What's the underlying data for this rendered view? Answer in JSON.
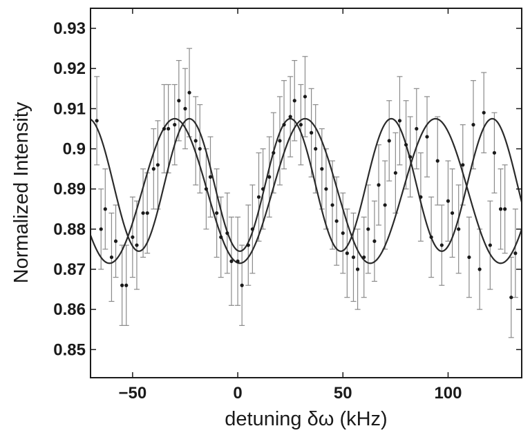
{
  "chart_data": {
    "type": "scatter",
    "title": "",
    "xlabel": "detuning δω (kHz)",
    "ylabel": "Normalized Intensity",
    "xlim": [
      -70,
      135
    ],
    "ylim": [
      0.843,
      0.935
    ],
    "xticks": [
      -50,
      0,
      50,
      100
    ],
    "xtick_labels": [
      "−50",
      "0",
      "50",
      "100"
    ],
    "yticks": [
      0.85,
      0.86,
      0.87,
      0.88,
      0.89,
      0.9,
      0.91,
      0.92,
      0.93
    ],
    "ytick_labels": [
      "0.85",
      "0.86",
      "0.87",
      "0.88",
      "0.89",
      "0.9",
      "0.91",
      "0.92",
      "0.93"
    ],
    "grid": false,
    "legend": false,
    "series": [
      {
        "fit": {
          "center": 0.891,
          "amplitude": 0.0165,
          "period": 48,
          "phase_x": 25
        },
        "points": [
          {
            "x": -67,
            "y": 0.907,
            "err": 0.011
          },
          {
            "x": -63,
            "y": 0.885,
            "err": 0.01
          },
          {
            "x": -58,
            "y": 0.877,
            "err": 0.009
          },
          {
            "x": -53,
            "y": 0.866,
            "err": 0.01
          },
          {
            "x": -48,
            "y": 0.876,
            "err": 0.011
          },
          {
            "x": -43,
            "y": 0.884,
            "err": 0.01
          },
          {
            "x": -38,
            "y": 0.896,
            "err": 0.011
          },
          {
            "x": -33,
            "y": 0.905,
            "err": 0.011
          },
          {
            "x": -28,
            "y": 0.912,
            "err": 0.01
          },
          {
            "x": -23,
            "y": 0.914,
            "err": 0.011
          },
          {
            "x": -18,
            "y": 0.9,
            "err": 0.011
          },
          {
            "x": -13,
            "y": 0.893,
            "err": 0.01
          },
          {
            "x": -8,
            "y": 0.878,
            "err": 0.01
          },
          {
            "x": -3,
            "y": 0.872,
            "err": 0.011
          },
          {
            "x": 2,
            "y": 0.866,
            "err": 0.01
          },
          {
            "x": 7,
            "y": 0.88,
            "err": 0.011
          },
          {
            "x": 12,
            "y": 0.89,
            "err": 0.01
          },
          {
            "x": 17,
            "y": 0.899,
            "err": 0.01
          },
          {
            "x": 22,
            "y": 0.906,
            "err": 0.011
          },
          {
            "x": 27,
            "y": 0.912,
            "err": 0.01
          },
          {
            "x": 32,
            "y": 0.913,
            "err": 0.01
          },
          {
            "x": 37,
            "y": 0.9,
            "err": 0.011
          },
          {
            "x": 42,
            "y": 0.89,
            "err": 0.01
          },
          {
            "x": 47,
            "y": 0.882,
            "err": 0.011
          },
          {
            "x": 52,
            "y": 0.874,
            "err": 0.011
          },
          {
            "x": 57,
            "y": 0.87,
            "err": 0.01
          },
          {
            "x": 62,
            "y": 0.88,
            "err": 0.011
          },
          {
            "x": 67,
            "y": 0.891,
            "err": 0.01
          },
          {
            "x": 72,
            "y": 0.902,
            "err": 0.01
          },
          {
            "x": 77,
            "y": 0.907,
            "err": 0.011
          },
          {
            "x": 82,
            "y": 0.898,
            "err": 0.01
          },
          {
            "x": 87,
            "y": 0.888,
            "err": 0.011
          },
          {
            "x": 92,
            "y": 0.878,
            "err": 0.01
          },
          {
            "x": 97,
            "y": 0.876,
            "err": 0.01
          },
          {
            "x": 102,
            "y": 0.884,
            "err": 0.011
          },
          {
            "x": 107,
            "y": 0.896,
            "err": 0.01
          },
          {
            "x": 112,
            "y": 0.906,
            "err": 0.011
          },
          {
            "x": 117,
            "y": 0.909,
            "err": 0.01
          },
          {
            "x": 122,
            "y": 0.899,
            "err": 0.01
          },
          {
            "x": 127,
            "y": 0.885,
            "err": 0.011
          },
          {
            "x": 132,
            "y": 0.874,
            "err": 0.011
          }
        ]
      },
      {
        "fit": {
          "center": 0.8895,
          "amplitude": 0.018,
          "period": 62,
          "phase_x": 32
        },
        "points": [
          {
            "x": -65,
            "y": 0.88,
            "err": 0.01
          },
          {
            "x": -60,
            "y": 0.873,
            "err": 0.011
          },
          {
            "x": -55,
            "y": 0.866,
            "err": 0.01
          },
          {
            "x": -50,
            "y": 0.878,
            "err": 0.01
          },
          {
            "x": -45,
            "y": 0.884,
            "err": 0.011
          },
          {
            "x": -40,
            "y": 0.895,
            "err": 0.01
          },
          {
            "x": -35,
            "y": 0.905,
            "err": 0.011
          },
          {
            "x": -30,
            "y": 0.906,
            "err": 0.01
          },
          {
            "x": -25,
            "y": 0.91,
            "err": 0.01
          },
          {
            "x": -20,
            "y": 0.902,
            "err": 0.011
          },
          {
            "x": -15,
            "y": 0.89,
            "err": 0.01
          },
          {
            "x": -10,
            "y": 0.884,
            "err": 0.011
          },
          {
            "x": -5,
            "y": 0.879,
            "err": 0.01
          },
          {
            "x": 0,
            "y": 0.872,
            "err": 0.011
          },
          {
            "x": 5,
            "y": 0.876,
            "err": 0.01
          },
          {
            "x": 10,
            "y": 0.888,
            "err": 0.011
          },
          {
            "x": 15,
            "y": 0.893,
            "err": 0.01
          },
          {
            "x": 20,
            "y": 0.902,
            "err": 0.011
          },
          {
            "x": 25,
            "y": 0.908,
            "err": 0.01
          },
          {
            "x": 30,
            "y": 0.906,
            "err": 0.01
          },
          {
            "x": 35,
            "y": 0.904,
            "err": 0.011
          },
          {
            "x": 40,
            "y": 0.895,
            "err": 0.01
          },
          {
            "x": 45,
            "y": 0.886,
            "err": 0.011
          },
          {
            "x": 50,
            "y": 0.879,
            "err": 0.01
          },
          {
            "x": 55,
            "y": 0.873,
            "err": 0.011
          },
          {
            "x": 60,
            "y": 0.873,
            "err": 0.01
          },
          {
            "x": 65,
            "y": 0.877,
            "err": 0.01
          },
          {
            "x": 70,
            "y": 0.886,
            "err": 0.011
          },
          {
            "x": 75,
            "y": 0.894,
            "err": 0.01
          },
          {
            "x": 80,
            "y": 0.901,
            "err": 0.011
          },
          {
            "x": 85,
            "y": 0.905,
            "err": 0.01
          },
          {
            "x": 90,
            "y": 0.903,
            "err": 0.01
          },
          {
            "x": 95,
            "y": 0.897,
            "err": 0.011
          },
          {
            "x": 100,
            "y": 0.887,
            "err": 0.01
          },
          {
            "x": 105,
            "y": 0.88,
            "err": 0.011
          },
          {
            "x": 110,
            "y": 0.873,
            "err": 0.01
          },
          {
            "x": 115,
            "y": 0.87,
            "err": 0.01
          },
          {
            "x": 120,
            "y": 0.876,
            "err": 0.011
          },
          {
            "x": 125,
            "y": 0.885,
            "err": 0.01
          },
          {
            "x": 130,
            "y": 0.863,
            "err": 0.01
          }
        ]
      }
    ]
  }
}
